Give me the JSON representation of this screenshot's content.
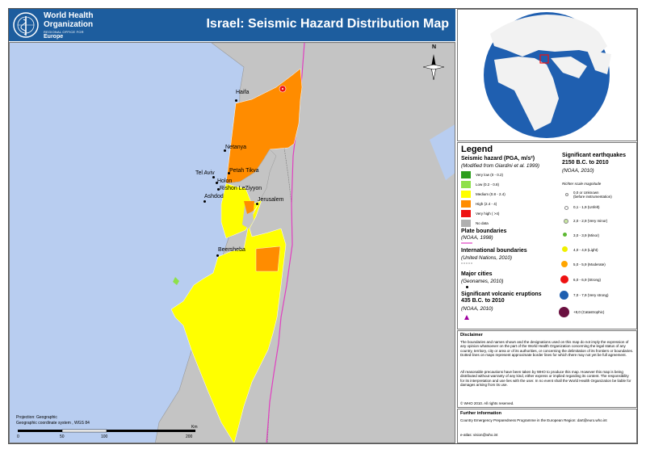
{
  "header": {
    "org_line1": "World Health",
    "org_line2": "Organization",
    "org_sub": "REGIONAL OFFICE FOR",
    "region": "Europe",
    "title": "Israel: Seismic Hazard Distribution Map"
  },
  "colors": {
    "header_bg": "#1d5d9e",
    "sea": "#b8cdf0",
    "land": "#c4c4c4",
    "hazard_very_low": "#2e9e1e",
    "hazard_low": "#8ee04a",
    "hazard_medium": "#ffff00",
    "hazard_high": "#ff8c00",
    "hazard_very_high": "#ee1111",
    "hazard_no_data": "#b0b0b0",
    "plate_boundary": "#e040c0"
  },
  "map": {
    "cities": [
      {
        "name": "Haifa"
      },
      {
        "name": "Netanya"
      },
      {
        "name": "Petah Tikva"
      },
      {
        "name": "Tel Aviv"
      },
      {
        "name": "Holon"
      },
      {
        "name": "Rishon LeZiyyon"
      },
      {
        "name": "Ashdod"
      },
      {
        "name": "Jerusalem"
      },
      {
        "name": "Beersheba"
      }
    ],
    "projection_line1": "Projection: Geographic",
    "projection_line2": "Geographic coordinate system , WGS 84",
    "scale_unit": "Km",
    "scale_ticks": [
      "0",
      "50",
      "100",
      "200"
    ],
    "north_label": "N"
  },
  "legend": {
    "title": "Legend",
    "hazard_heading": "Seismic hazard (PGA, m/s²)",
    "hazard_source": "(Modified from Giardini et al. 1999)",
    "hazard_classes": [
      {
        "label": "Very low (0 - 0.2)",
        "color_key": "hazard_very_low"
      },
      {
        "label": "Low (0.2 - 0.8)",
        "color_key": "hazard_low"
      },
      {
        "label": "Medium (0.8 - 2.4)",
        "color_key": "hazard_medium"
      },
      {
        "label": "High (2.4 - 4)",
        "color_key": "hazard_high"
      },
      {
        "label": "Very high ( >4)",
        "color_key": "hazard_very_high"
      },
      {
        "label": "No data",
        "color_key": "hazard_no_data"
      }
    ],
    "plate_heading": "Plate boundaries",
    "plate_source": "(NOAA, 1998)",
    "intl_heading": "International boundaries",
    "intl_source": "(United Nations, 2010)",
    "cities_heading": "Major cities",
    "cities_source": "(Geonames, 2010)",
    "volcano_heading_1": "Significant volcanic eruptions",
    "volcano_heading_2": "435 B.C. to 2010",
    "volcano_source": "(NOAA, 2010)",
    "eq_heading_1": "Significant earthquakes",
    "eq_heading_2": "2150 B.C. to 2010",
    "eq_source": "(NOAA, 2010)",
    "richter_heading": "Richter scale magnitude",
    "magnitudes": [
      {
        "label": "0,0 or Unknown",
        "label2": "(before instrumentation)",
        "color": "#ffffff"
      },
      {
        "label": "0,1 - 1,9 (Unfelt)",
        "color": "#ffffff"
      },
      {
        "label": "2,0 - 2,9 (Very minor)",
        "color": "#c8e6a0"
      },
      {
        "label": "3,0 - 3,9 (Minor)",
        "color": "#5cb832"
      },
      {
        "label": "4,0 - 4,9 (Light)",
        "color": "#f0f000"
      },
      {
        "label": "5,0 - 5,9 (Moderate)",
        "color": "#ffa500"
      },
      {
        "label": "6,0 - 6,9 (Strong)",
        "color": "#ee1111"
      },
      {
        "label": "7,0 - 7,9 (Very strong)",
        "color": "#1f5fb0"
      },
      {
        "label": "+8,0 (Catastrophic)",
        "color": "#6a1040"
      }
    ]
  },
  "disclaimer": {
    "title": "Disclaimer",
    "text1": "The boundaries and names shown and the designations used on this map do not imply the expression of any opinion whatsoever on the part of the World Health Organization concerning the legal status of any country, territory, city or area or of its authorities, or concerning the delimitation of its frontiers or boundaries. Dotted lines on maps represent approximate border lines for which there may not yet be full agreement.",
    "text2": "All reasonable precautions have been taken by WHO to produce this map. However this map is being distributed without warranty of any kind, either express or implied regarding its content. The responsibility for its interpretation and use lies with the user. In no event shall the World Health Organization be liable for damages arising from its use.",
    "copyright": "© WHO 2010. All rights reserved."
  },
  "further_info": {
    "title": "Further information",
    "text": "Country Emergency Preparedness Programme in the European Region: dart@euro.who.int",
    "email": "e-atlas: vision@who.int"
  }
}
